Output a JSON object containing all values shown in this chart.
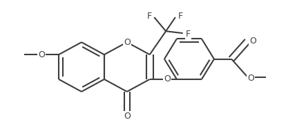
{
  "bg_color": "#ffffff",
  "line_color": "#3d3d3d",
  "line_width": 1.5,
  "figsize": [
    4.31,
    1.74
  ],
  "dpi": 100,
  "xlim": [
    0,
    431
  ],
  "ylim": [
    0,
    174
  ]
}
